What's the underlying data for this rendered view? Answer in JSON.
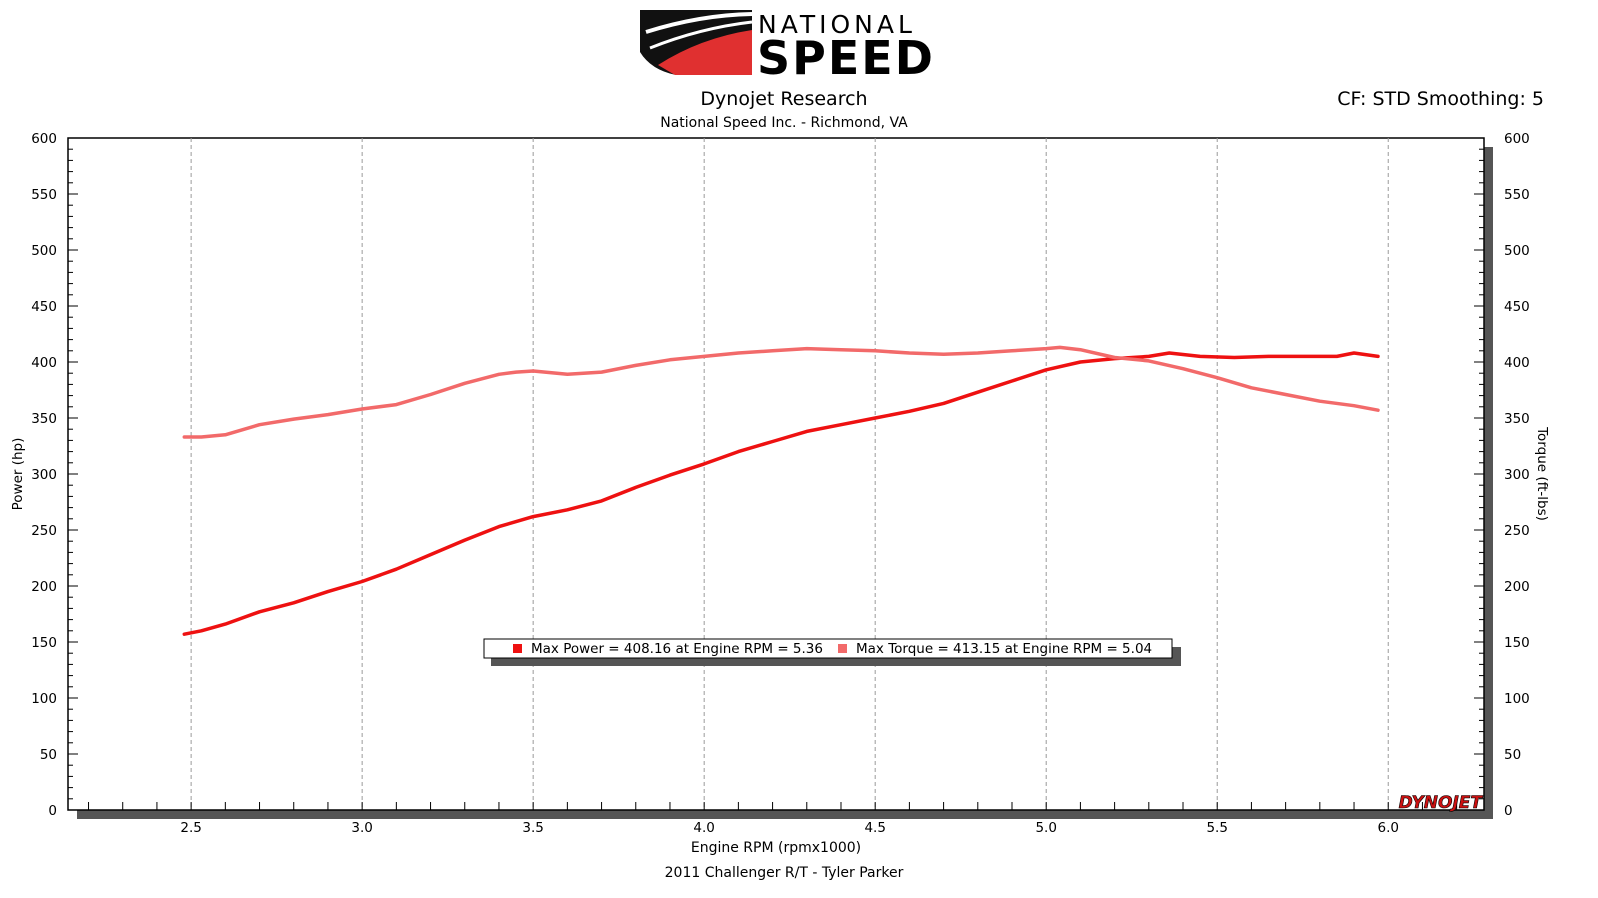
{
  "header": {
    "brand_top": "NATIONAL",
    "brand_bottom": "SPEED",
    "title": "Dynojet Research",
    "subtitle": "National Speed Inc. - Richmond, VA",
    "settings": "CF: STD Smoothing: 5"
  },
  "footer": {
    "run_label": "2011 Challenger R/T - Tyler Parker",
    "watermark": "DYNOJET"
  },
  "legend": {
    "power": "Max Power = 408.16 at Engine RPM = 5.36",
    "torque": "Max Torque = 413.15 at Engine RPM = 5.04"
  },
  "colors": {
    "power": "#ee1111",
    "torque": "#f26a6a",
    "brand_red": "#e03030",
    "frame": "#000000"
  },
  "chart_data": {
    "type": "line",
    "xlabel": "Engine RPM (rpmx1000)",
    "ylabel": "Power (hp)",
    "y2label": "Torque (ft-lbs)",
    "xlim": [
      2.14,
      6.28
    ],
    "ylim": [
      0,
      600
    ],
    "y2lim": [
      0,
      600
    ],
    "x_ticks": [
      2.5,
      3.0,
      3.5,
      4.0,
      4.5,
      5.0,
      5.5,
      6.0
    ],
    "x_tick_labels": [
      "2.5",
      "3.0",
      "3.5",
      "4.0",
      "4.5",
      "5.0",
      "5.5",
      "6.0"
    ],
    "y_ticks": [
      0,
      50,
      100,
      150,
      200,
      250,
      300,
      350,
      400,
      450,
      500,
      550,
      600
    ],
    "y_tick_labels": [
      "0",
      "50",
      "100",
      "150",
      "200",
      "250",
      "300",
      "350",
      "400",
      "450",
      "500",
      "550",
      "600"
    ],
    "grid": "vertical-dashed",
    "legend_position": "bottom-center",
    "series": [
      {
        "key": "power",
        "axis": "left",
        "x": [
          2.48,
          2.53,
          2.6,
          2.7,
          2.8,
          2.9,
          3.0,
          3.1,
          3.2,
          3.3,
          3.4,
          3.5,
          3.6,
          3.7,
          3.8,
          3.9,
          4.0,
          4.1,
          4.2,
          4.3,
          4.4,
          4.5,
          4.6,
          4.7,
          4.8,
          4.9,
          5.0,
          5.1,
          5.2,
          5.3,
          5.36,
          5.45,
          5.55,
          5.65,
          5.75,
          5.85,
          5.9,
          5.97
        ],
        "values": [
          157,
          160,
          166,
          177,
          185,
          195,
          204,
          215,
          228,
          241,
          253,
          262,
          268,
          276,
          288,
          299,
          309,
          320,
          329,
          338,
          344,
          350,
          356,
          363,
          373,
          383,
          393,
          400,
          403,
          405,
          408,
          405,
          404,
          405,
          405,
          405,
          408,
          405
        ]
      },
      {
        "key": "torque",
        "axis": "right",
        "x": [
          2.48,
          2.53,
          2.6,
          2.7,
          2.8,
          2.9,
          3.0,
          3.1,
          3.2,
          3.3,
          3.4,
          3.45,
          3.5,
          3.6,
          3.7,
          3.8,
          3.9,
          4.0,
          4.1,
          4.2,
          4.3,
          4.4,
          4.5,
          4.6,
          4.7,
          4.8,
          4.9,
          5.0,
          5.04,
          5.1,
          5.2,
          5.3,
          5.4,
          5.5,
          5.6,
          5.7,
          5.8,
          5.9,
          5.97
        ],
        "values": [
          333,
          333,
          335,
          344,
          349,
          353,
          358,
          362,
          371,
          381,
          389,
          391,
          392,
          389,
          391,
          397,
          402,
          405,
          408,
          410,
          412,
          411,
          410,
          408,
          407,
          408,
          410,
          412,
          413,
          411,
          404,
          401,
          394,
          386,
          377,
          371,
          365,
          361,
          357
        ]
      }
    ]
  }
}
